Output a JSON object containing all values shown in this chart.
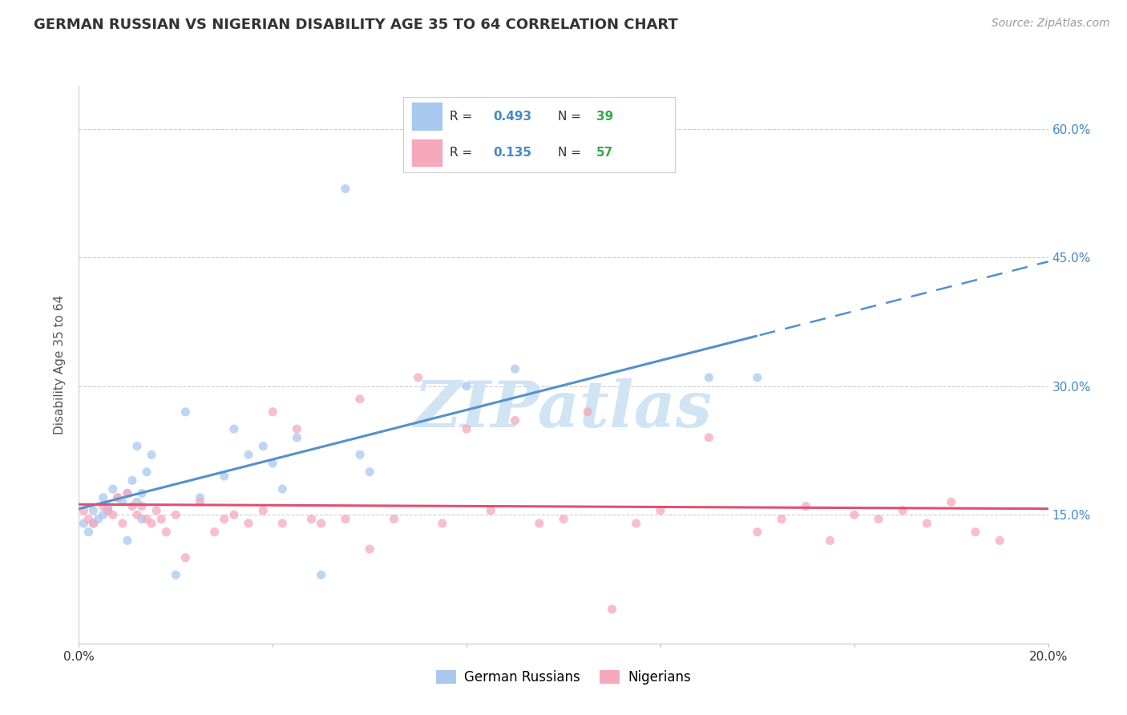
{
  "title": "GERMAN RUSSIAN VS NIGERIAN DISABILITY AGE 35 TO 64 CORRELATION CHART",
  "source": "Source: ZipAtlas.com",
  "ylabel_label": "Disability Age 35 to 64",
  "x_min": 0.0,
  "x_max": 0.2,
  "y_min": 0.0,
  "y_max": 0.65,
  "x_ticks": [
    0.0,
    0.04,
    0.08,
    0.12,
    0.16,
    0.2
  ],
  "x_tick_labels": [
    "0.0%",
    "",
    "",
    "",
    "",
    "20.0%"
  ],
  "y_ticks": [
    0.0,
    0.15,
    0.3,
    0.45,
    0.6
  ],
  "y_tick_labels": [
    "",
    "15.0%",
    "30.0%",
    "45.0%",
    "60.0%"
  ],
  "german_russian_R": 0.493,
  "german_russian_N": 39,
  "nigerian_R": 0.135,
  "nigerian_N": 57,
  "blue_color": "#A8C8F0",
  "pink_color": "#F5A8BC",
  "blue_line_color": "#5590CC",
  "pink_line_color": "#E05070",
  "legend_R_color": "#4488CC",
  "legend_N_color": "#33AA44",
  "watermark": "ZIPatlas",
  "watermark_color": "#D0E4F4",
  "background_color": "#FFFFFF",
  "grid_color": "#CCCCCC",
  "title_color": "#333333",
  "source_color": "#999999",
  "ylabel_color": "#555555",
  "tick_label_color": "#333333",
  "right_tick_color": "#4488CC",
  "german_russian_x": [
    0.001,
    0.002,
    0.003,
    0.003,
    0.004,
    0.005,
    0.005,
    0.006,
    0.006,
    0.007,
    0.008,
    0.009,
    0.01,
    0.01,
    0.011,
    0.012,
    0.012,
    0.013,
    0.013,
    0.014,
    0.015,
    0.02,
    0.022,
    0.025,
    0.03,
    0.032,
    0.035,
    0.038,
    0.04,
    0.042,
    0.045,
    0.05,
    0.055,
    0.058,
    0.06,
    0.08,
    0.09,
    0.13,
    0.14
  ],
  "german_russian_y": [
    0.14,
    0.13,
    0.155,
    0.14,
    0.145,
    0.17,
    0.15,
    0.16,
    0.155,
    0.18,
    0.17,
    0.165,
    0.175,
    0.12,
    0.19,
    0.23,
    0.165,
    0.175,
    0.145,
    0.2,
    0.22,
    0.08,
    0.27,
    0.17,
    0.195,
    0.25,
    0.22,
    0.23,
    0.21,
    0.18,
    0.24,
    0.08,
    0.53,
    0.22,
    0.2,
    0.3,
    0.32,
    0.31,
    0.31
  ],
  "nigerian_x": [
    0.001,
    0.002,
    0.003,
    0.005,
    0.006,
    0.007,
    0.008,
    0.009,
    0.01,
    0.011,
    0.012,
    0.013,
    0.014,
    0.015,
    0.016,
    0.017,
    0.018,
    0.02,
    0.022,
    0.025,
    0.028,
    0.03,
    0.032,
    0.035,
    0.038,
    0.04,
    0.042,
    0.045,
    0.048,
    0.05,
    0.055,
    0.058,
    0.06,
    0.065,
    0.07,
    0.075,
    0.08,
    0.085,
    0.09,
    0.095,
    0.1,
    0.105,
    0.11,
    0.115,
    0.12,
    0.13,
    0.14,
    0.145,
    0.15,
    0.155,
    0.16,
    0.165,
    0.17,
    0.175,
    0.18,
    0.185,
    0.19
  ],
  "nigerian_y": [
    0.155,
    0.145,
    0.14,
    0.16,
    0.155,
    0.15,
    0.17,
    0.14,
    0.175,
    0.16,
    0.15,
    0.16,
    0.145,
    0.14,
    0.155,
    0.145,
    0.13,
    0.15,
    0.1,
    0.165,
    0.13,
    0.145,
    0.15,
    0.14,
    0.155,
    0.27,
    0.14,
    0.25,
    0.145,
    0.14,
    0.145,
    0.285,
    0.11,
    0.145,
    0.31,
    0.14,
    0.25,
    0.155,
    0.26,
    0.14,
    0.145,
    0.27,
    0.04,
    0.14,
    0.155,
    0.24,
    0.13,
    0.145,
    0.16,
    0.12,
    0.15,
    0.145,
    0.155,
    0.14,
    0.165,
    0.13,
    0.12
  ]
}
